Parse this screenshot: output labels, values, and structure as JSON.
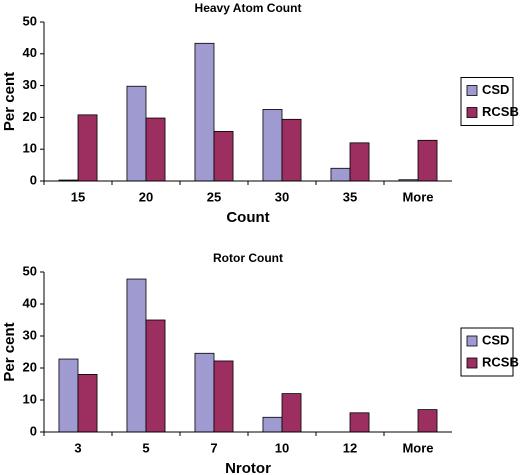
{
  "chart_data": [
    {
      "type": "bar",
      "title": "Heavy Atom Count",
      "x_label": "Count",
      "y_label": "Per cent",
      "categories": [
        "15",
        "20",
        "25",
        "30",
        "35",
        "More"
      ],
      "series": [
        {
          "name": "CSD",
          "color": "#9f9bd1",
          "values": [
            0.3,
            29.8,
            43.3,
            22.5,
            4,
            0.4
          ]
        },
        {
          "name": "RCSB",
          "color": "#9c2f5f",
          "values": [
            20.8,
            19.8,
            15.6,
            19.4,
            12,
            12.8
          ]
        }
      ],
      "ylim": [
        0,
        50
      ],
      "yticks": [
        0,
        10,
        20,
        30,
        40,
        50
      ],
      "legend": "right"
    },
    {
      "type": "bar",
      "title": "Rotor Count",
      "x_label": "Nrotor",
      "y_label": "Per cent",
      "categories": [
        "3",
        "5",
        "7",
        "10",
        "12",
        "More"
      ],
      "series": [
        {
          "name": "CSD",
          "color": "#9f9bd1",
          "values": [
            22.8,
            47.8,
            24.6,
            4.6,
            0,
            0
          ]
        },
        {
          "name": "RCSB",
          "color": "#9c2f5f",
          "values": [
            18,
            35,
            22.2,
            12,
            6,
            7
          ]
        }
      ],
      "ylim": [
        0,
        50
      ],
      "yticks": [
        0,
        10,
        20,
        30,
        40,
        50
      ],
      "legend": "right"
    }
  ]
}
